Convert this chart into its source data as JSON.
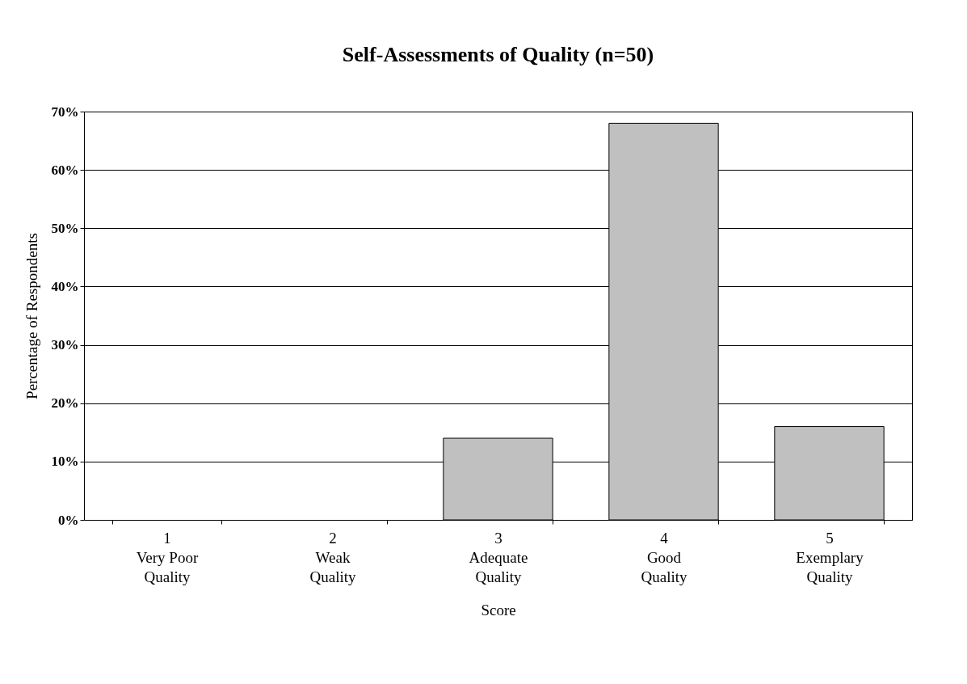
{
  "chart_data": {
    "type": "bar",
    "title": "Self-Assessments of Quality (n=50)",
    "xlabel": "Score",
    "ylabel": "Percentage of Respondents",
    "categories": [
      "1\nVery Poor\nQuality",
      "2\nWeak\nQuality",
      "3\nAdequate\nQuality",
      "4\nGood\nQuality",
      "5\nExemplary\nQuality"
    ],
    "values": [
      0,
      0,
      14,
      68,
      16
    ],
    "color": "#c0c0c0",
    "ylim": [
      0,
      70
    ],
    "yticks": [
      {
        "value": 0,
        "label": "0%"
      },
      {
        "value": 10,
        "label": "10%"
      },
      {
        "value": 20,
        "label": "20%"
      },
      {
        "value": 30,
        "label": "30%"
      },
      {
        "value": 40,
        "label": "40%"
      },
      {
        "value": 50,
        "label": "50%"
      },
      {
        "value": 60,
        "label": "60%"
      },
      {
        "value": 70,
        "label": "70%"
      }
    ],
    "grid": "y"
  }
}
